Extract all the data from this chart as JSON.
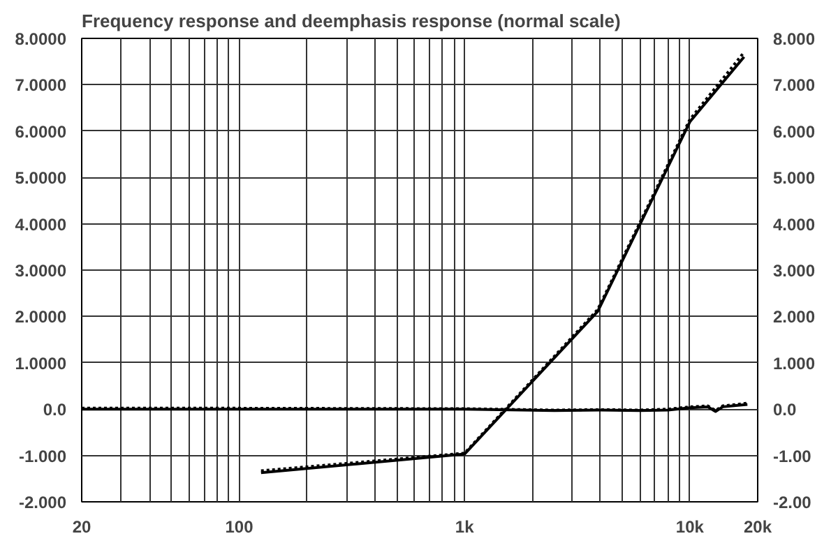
{
  "chart_data": {
    "type": "line",
    "title": "Frequency response and deemphasis response (normal scale)",
    "log": "x",
    "grid": true,
    "marker": "none",
    "xlim": [
      20,
      20000
    ],
    "xticks": [
      20,
      {
        "value": 30,
        "label": null
      },
      {
        "value": 40,
        "label": null
      },
      {
        "value": 50,
        "label": null
      },
      {
        "value": 60,
        "label": null
      },
      {
        "value": 70,
        "label": null
      },
      {
        "value": 80,
        "label": null
      },
      {
        "value": 90,
        "label": null
      },
      100,
      {
        "value": 200,
        "label": null
      },
      {
        "value": 300,
        "label": null
      },
      {
        "value": 400,
        "label": null
      },
      {
        "value": 500,
        "label": null
      },
      {
        "value": 600,
        "label": null
      },
      {
        "value": 700,
        "label": null
      },
      {
        "value": 800,
        "label": null
      },
      {
        "value": 900,
        "label": null
      },
      {
        "value": 1000,
        "label": "1k"
      },
      {
        "value": 2000,
        "label": null
      },
      {
        "value": 3000,
        "label": null
      },
      {
        "value": 4000,
        "label": null
      },
      {
        "value": 5000,
        "label": null
      },
      {
        "value": 6000,
        "label": null
      },
      {
        "value": 7000,
        "label": null
      },
      {
        "value": 8000,
        "label": null
      },
      {
        "value": 9000,
        "label": null
      },
      {
        "value": 10000,
        "label": "10k"
      },
      {
        "value": 20000,
        "label": "20k"
      }
    ],
    "ylim": [
      -2,
      8
    ],
    "yticks": [
      {
        "value": -2,
        "label": "-2.000"
      },
      {
        "value": -1,
        "label": "-1.000"
      },
      {
        "value": 0,
        "label": "0.0"
      },
      {
        "value": 1,
        "label": "1.0000"
      },
      {
        "value": 2,
        "label": "2.0000"
      },
      {
        "value": 3,
        "label": "3.0000"
      },
      {
        "value": 4,
        "label": "4.0000"
      },
      {
        "value": 5,
        "label": "5.0000"
      },
      {
        "value": 6,
        "label": "6.0000"
      },
      {
        "value": 7,
        "label": "7.0000"
      },
      {
        "value": 8,
        "label": "8.0000"
      }
    ],
    "y2lim": [
      -2,
      8
    ],
    "y2ticks": [
      {
        "value": -2,
        "label": "-2.00"
      },
      {
        "value": -1,
        "label": "-1.00"
      },
      {
        "value": 0,
        "label": "0.0"
      },
      {
        "value": 1,
        "label": "1.000"
      },
      {
        "value": 2,
        "label": "2.000"
      },
      {
        "value": 3,
        "label": "3.000"
      },
      {
        "value": 4,
        "label": "4.000"
      },
      {
        "value": 5,
        "label": "5.000"
      },
      {
        "value": 6,
        "label": "6.000"
      },
      {
        "value": 7,
        "label": "7.000"
      },
      {
        "value": 8,
        "label": "8.000"
      }
    ],
    "series": [
      {
        "color": "#000000",
        "line_style": "solid",
        "x": [
          125,
          1000,
          3900,
          10000,
          17400
        ],
        "values": [
          -1.37,
          -0.97,
          2.11,
          6.2,
          7.6
        ]
      },
      {
        "color": "#000000",
        "line_style": "dotted",
        "x": [
          125,
          1000,
          3900,
          10000,
          17400
        ],
        "values": [
          -1.33,
          -0.95,
          2.15,
          6.25,
          7.7
        ]
      },
      {
        "color": "#000000",
        "line_style": "solid",
        "x": [
          20,
          100,
          1000,
          2500,
          4000,
          6000,
          8000,
          10000,
          12000,
          13000,
          14000,
          16000,
          18000
        ],
        "values": [
          0,
          0,
          0,
          -0.03,
          -0.02,
          -0.03,
          -0.02,
          0.03,
          0.05,
          -0.05,
          0.05,
          0.08,
          0.1
        ]
      },
      {
        "color": "#000000",
        "line_style": "dotted",
        "x": [
          20,
          100,
          1000,
          2500,
          4000,
          6000,
          8000,
          10000,
          12000,
          13000,
          14000,
          16000,
          18000
        ],
        "values": [
          0.02,
          0.02,
          0.01,
          -0.02,
          -0.01,
          -0.02,
          0,
          0.05,
          0.07,
          -0.03,
          0.07,
          0.1,
          0.13
        ]
      }
    ]
  }
}
